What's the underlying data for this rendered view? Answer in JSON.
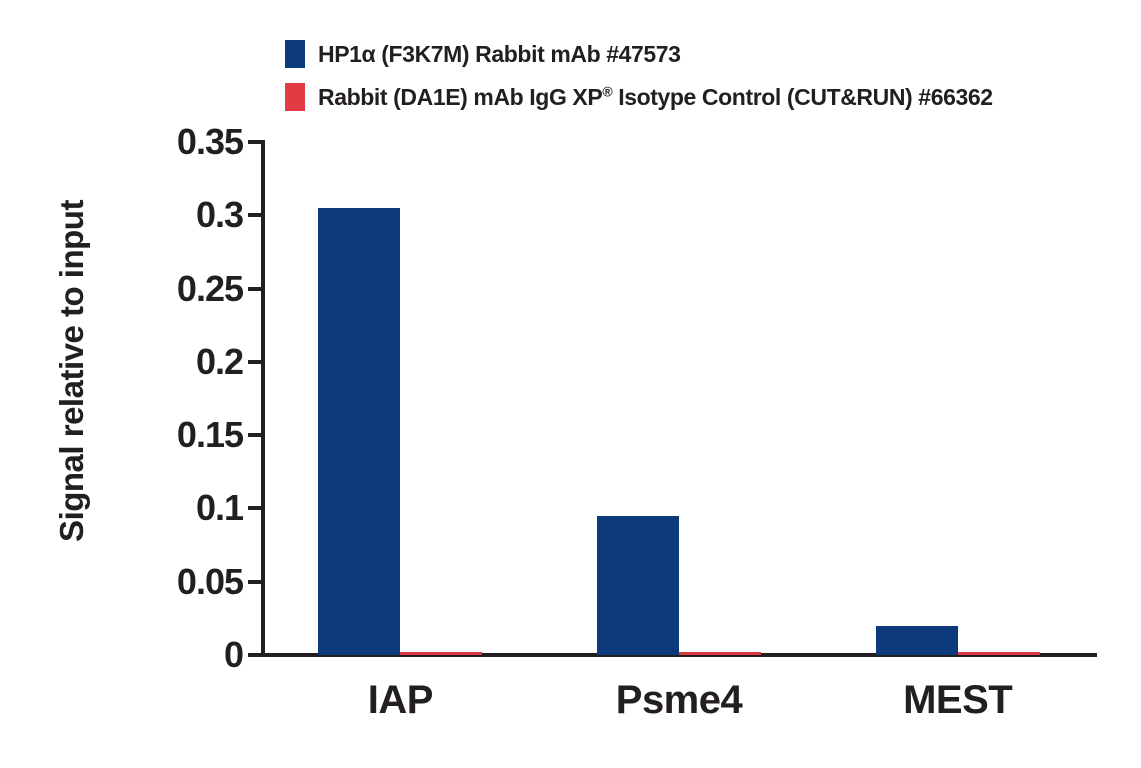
{
  "chart_data": {
    "type": "bar",
    "title": "",
    "categories": [
      "IAP",
      "Psme4",
      "MEST"
    ],
    "series": [
      {
        "name": "HP1α (F3K7M) Rabbit mAb #47573",
        "color": "#0d3a7b",
        "values": [
          0.305,
          0.095,
          0.02
        ]
      },
      {
        "name": "Rabbit (DA1E) mAb IgG XP® Isotype Control (CUT&RUN) #66362",
        "color": "#dc3a42",
        "values": [
          0.002,
          0.002,
          0.002
        ]
      }
    ],
    "xlabel": "",
    "ylabel": "Signal relative to input",
    "ylim": [
      0,
      0.35
    ],
    "yticks": [
      0,
      0.05,
      0.1,
      0.15,
      0.2,
      0.25,
      0.3,
      0.35
    ],
    "ytick_labels": [
      "0",
      "0.05",
      "0.1",
      "0.15",
      "0.2",
      "0.25",
      "0.3",
      "0.35"
    ],
    "grid": false,
    "legend_position": "top-left"
  },
  "legend": {
    "items": [
      {
        "swatch_color": "#0d3a7b",
        "segments": [
          {
            "text": "HP1α (F3K7M) Rabbit mAb #47573",
            "sup": false
          }
        ]
      },
      {
        "swatch_color": "#e23b43",
        "segments": [
          {
            "text": "Rabbit (DA1E) mAb IgG XP",
            "sup": false
          },
          {
            "text": "®",
            "sup": true
          },
          {
            "text": " Isotype Control (CUT&RUN) #66362",
            "sup": false
          }
        ]
      }
    ]
  },
  "colors": {
    "axis": "#231f20",
    "text": "#231f20",
    "background": "#ffffff"
  }
}
